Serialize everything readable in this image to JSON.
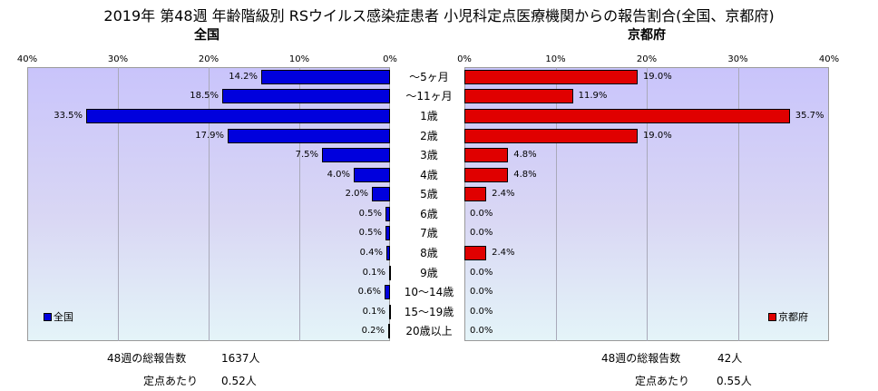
{
  "title": "2019年 第48週 年齢階級別 RSウイルス感染症患者 小児科定点医療機関からの報告割合(全国、京都府)",
  "chart_data": [
    {
      "type": "bar",
      "orientation": "horizontal",
      "direction": "right-to-left",
      "title": "全国",
      "categories": [
        "～5ヶ月",
        "～11ヶ月",
        "1歳",
        "2歳",
        "3歳",
        "4歳",
        "5歳",
        "6歳",
        "7歳",
        "8歳",
        "9歳",
        "10～14歳",
        "15～19歳",
        "20歳以上"
      ],
      "series": [
        {
          "name": "全国",
          "color": "#0000dd",
          "values": [
            14.2,
            18.5,
            33.5,
            17.9,
            7.5,
            4.0,
            2.0,
            0.5,
            0.5,
            0.4,
            0.1,
            0.6,
            0.1,
            0.2
          ],
          "labels": [
            "14.2%",
            "18.5%",
            "33.5%",
            "17.9%",
            "7.5%",
            "4.0%",
            "2.0%",
            "0.5%",
            "0.5%",
            "0.4%",
            "0.1%",
            "0.6%",
            "0.1%",
            "0.2%"
          ]
        }
      ],
      "xlim": [
        0,
        40
      ],
      "ticks": [
        "0%",
        "10%",
        "20%",
        "30%",
        "40%"
      ],
      "grid": true,
      "legend_position": "bottom-left"
    },
    {
      "type": "bar",
      "orientation": "horizontal",
      "direction": "left-to-right",
      "title": "京都府",
      "categories": [
        "～5ヶ月",
        "～11ヶ月",
        "1歳",
        "2歳",
        "3歳",
        "4歳",
        "5歳",
        "6歳",
        "7歳",
        "8歳",
        "9歳",
        "10～14歳",
        "15～19歳",
        "20歳以上"
      ],
      "series": [
        {
          "name": "京都府",
          "color": "#e00000",
          "values": [
            19.0,
            11.9,
            35.7,
            19.0,
            4.8,
            4.8,
            2.4,
            0.0,
            0.0,
            2.4,
            0.0,
            0.0,
            0.0,
            0.0
          ],
          "labels": [
            "19.0%",
            "11.9%",
            "35.7%",
            "19.0%",
            "4.8%",
            "4.8%",
            "2.4%",
            "0.0%",
            "0.0%",
            "2.4%",
            "0.0%",
            "0.0%",
            "0.0%",
            "0.0%"
          ]
        }
      ],
      "xlim": [
        0,
        40
      ],
      "ticks": [
        "0%",
        "10%",
        "20%",
        "30%",
        "40%"
      ],
      "grid": true,
      "legend_position": "bottom-right"
    }
  ],
  "footer": {
    "national": {
      "total_label": "48週の総報告数",
      "total_value": "1637人",
      "per_label": "定点あたり",
      "per_value": "0.52人"
    },
    "kyoto": {
      "total_label": "48週の総報告数",
      "total_value": "42人",
      "per_label": "定点あたり",
      "per_value": "0.55人"
    }
  }
}
